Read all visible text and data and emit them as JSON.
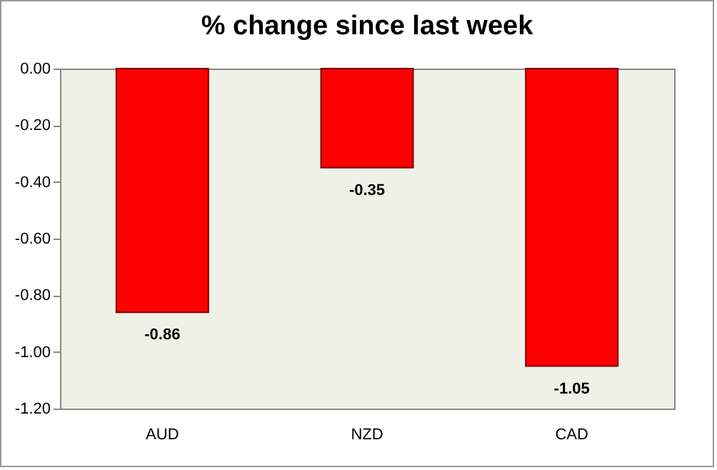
{
  "chart_data": {
    "type": "bar",
    "title": "% change since last week",
    "categories": [
      "AUD",
      "NZD",
      "CAD"
    ],
    "values": [
      -0.86,
      -0.35,
      -1.05
    ],
    "color": "#ff0000",
    "ylim": [
      -1.2,
      0
    ],
    "yticks": [
      {
        "value": 0,
        "label": "0.00"
      },
      {
        "value": -0.2,
        "label": "-0.20"
      },
      {
        "value": -0.4,
        "label": "-0.40"
      },
      {
        "value": -0.6,
        "label": "-0.60"
      },
      {
        "value": -0.8,
        "label": "-0.80"
      },
      {
        "value": -1,
        "label": "-1.00"
      },
      {
        "value": -1.2,
        "label": "-1.20"
      }
    ],
    "data_labels": true,
    "grid": false
  }
}
